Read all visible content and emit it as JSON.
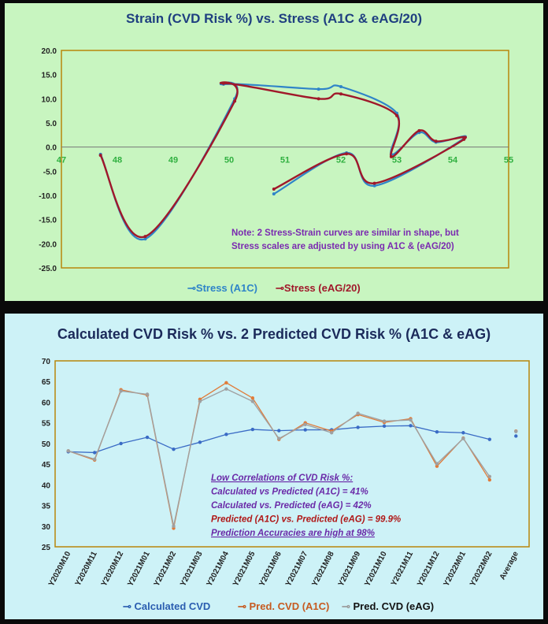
{
  "colors": {
    "calc": "#3a6bc5",
    "a1c": "#e07b39",
    "eag": "#a0a0a0",
    "stress_a1c": "#2f84c8",
    "stress_eag": "#a0182a"
  },
  "chart_data": [
    {
      "type": "scatter-line",
      "title": "Strain (CVD Risk %) vs. Stress (A1C & eAG/20)",
      "xlim": [
        47,
        55
      ],
      "ylim": [
        -25,
        20
      ],
      "xticks": [
        "47",
        "48",
        "49",
        "50",
        "51",
        "52",
        "53",
        "54",
        "55"
      ],
      "yticks": [
        "20.0",
        "15.0",
        "10.0",
        "5.0",
        "0.0",
        "-5.0",
        "-10.0",
        "-15.0",
        "-20.0",
        "-25.0"
      ],
      "series": [
        {
          "name": "Stress (A1C)",
          "points": [
            [
              47.7,
              -1.5
            ],
            [
              48.5,
              -19
            ],
            [
              50.1,
              10
            ],
            [
              49.9,
              13
            ],
            [
              51.6,
              12
            ],
            [
              52.0,
              12.5
            ],
            [
              53.0,
              7
            ],
            [
              52.9,
              -1.5
            ],
            [
              53.4,
              3
            ],
            [
              53.7,
              1
            ],
            [
              54.2,
              1.8
            ],
            [
              52.6,
              -8
            ],
            [
              52.1,
              -1.2
            ],
            [
              50.8,
              -9.7
            ]
          ]
        },
        {
          "name": "Stress (eAG/20)",
          "points": [
            [
              47.7,
              -1.7
            ],
            [
              48.5,
              -18.5
            ],
            [
              50.1,
              9.5
            ],
            [
              49.9,
              13.2
            ],
            [
              51.6,
              10
            ],
            [
              52.0,
              11
            ],
            [
              53.0,
              6.5
            ],
            [
              52.9,
              -2
            ],
            [
              53.4,
              3.4
            ],
            [
              53.7,
              1.2
            ],
            [
              54.2,
              1.6
            ],
            [
              52.6,
              -7.5
            ],
            [
              52.1,
              -1.4
            ],
            [
              50.8,
              -8.7
            ]
          ]
        }
      ],
      "annotation": [
        "Note: 2 Stress-Strain curves are similar in shape, but",
        "Stress scales are adjusted by using A1C & (eAG/20)"
      ]
    },
    {
      "type": "line",
      "title": "Calculated CVD Risk % vs. 2 Predicted CVD Risk % (A1C & eAG)",
      "categories": [
        "Y2020M10",
        "Y2020M11",
        "Y2020M12",
        "Y2021M01",
        "Y2021M02",
        "Y2021M03",
        "Y2021M04",
        "Y2021M05",
        "Y2021M06",
        "Y2021M07",
        "Y2021M08",
        "Y2021M09",
        "Y2021M10",
        "Y2021M11",
        "Y2021M12",
        "Y2022M01",
        "Y2022M02",
        "Average"
      ],
      "ylim": [
        25,
        70
      ],
      "yticks": [
        "70",
        "65",
        "60",
        "55",
        "50",
        "45",
        "40",
        "35",
        "30",
        "25"
      ],
      "series": [
        {
          "name": "Calculated CVD",
          "values": [
            48,
            47.8,
            50,
            51.5,
            48.6,
            50.3,
            52.2,
            53.4,
            53.1,
            53.3,
            53.3,
            53.9,
            54.2,
            54.3,
            52.8,
            52.6,
            51,
            51.8
          ]
        },
        {
          "name": "Pred. CVD (A1C)",
          "values": [
            48.2,
            46,
            63,
            61.7,
            29.5,
            60.7,
            64.7,
            61,
            51,
            55,
            53,
            57,
            55.1,
            56,
            44.5,
            51.3,
            41.2,
            53
          ]
        },
        {
          "name": "Pred. CVD (eAG)",
          "values": [
            48.2,
            46.2,
            62.7,
            61.9,
            30,
            60.2,
            63.2,
            60.2,
            51.2,
            54.6,
            52.6,
            57.3,
            55.4,
            55.7,
            45.1,
            51.2,
            42,
            52.9
          ]
        }
      ],
      "annotation": [
        {
          "text": "Low Correlations of CVD Risk %:",
          "color": "#6a2aa8",
          "underline": true
        },
        {
          "text": "Calculated vs Predicted (A1C) = 41%",
          "color": "#6a2aa8",
          "underline": false
        },
        {
          "text": "Calculated vs. Predicted (eAG) = 42%",
          "color": "#6a2aa8",
          "underline": false
        },
        {
          "text": "Predicted (A1C) vs. Predicted (eAG) = 99.9%",
          "color": "#b01818",
          "underline": false
        },
        {
          "text": "Prediction Accuracies are high at 98%",
          "color": "#6a2aa8",
          "underline": true
        }
      ]
    }
  ]
}
